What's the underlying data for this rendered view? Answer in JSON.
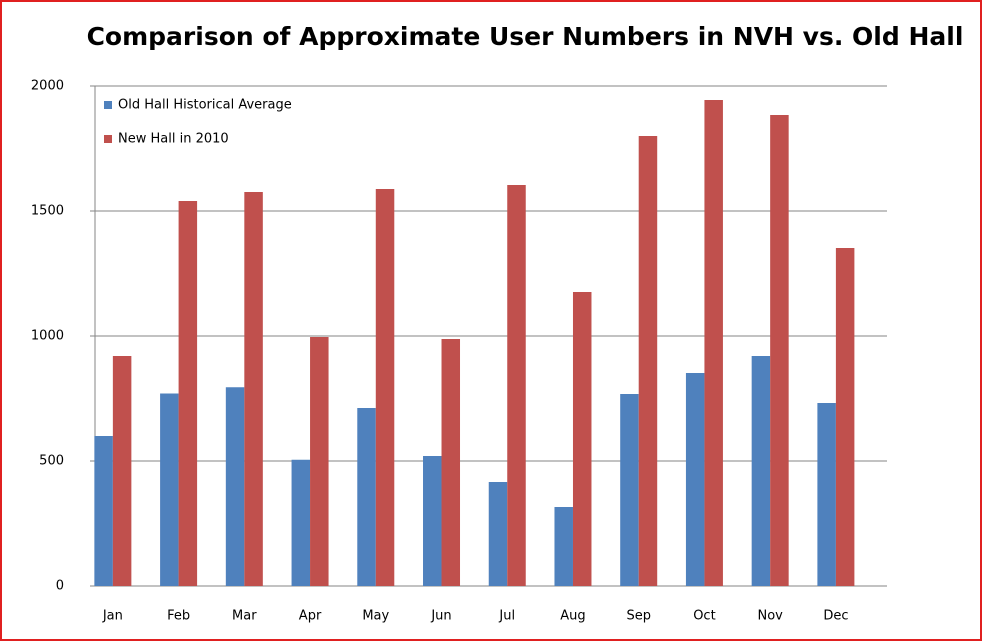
{
  "chart_data": {
    "type": "bar",
    "title": "Comparison of Approximate User Numbers in NVH vs. Old Hall",
    "categories": [
      "Jan",
      "Feb",
      "Mar",
      "Apr",
      "May",
      "Jun",
      "Jul",
      "Aug",
      "Sep",
      "Oct",
      "Nov",
      "Dec"
    ],
    "series": [
      {
        "name": "Old Hall Historical Average",
        "color": "#4f81bd",
        "values": [
          600,
          770,
          795,
          505,
          712,
          520,
          416,
          316,
          768,
          852,
          920,
          732
        ]
      },
      {
        "name": "New Hall in 2010",
        "color": "#c0504d",
        "values": [
          920,
          1540,
          1576,
          996,
          1588,
          988,
          1604,
          1176,
          1800,
          1944,
          1884,
          1352
        ]
      }
    ],
    "ylim": [
      0,
      2000
    ],
    "yticks": [
      0,
      500,
      1000,
      1500,
      2000
    ],
    "grid": true,
    "legend": "top-left"
  }
}
